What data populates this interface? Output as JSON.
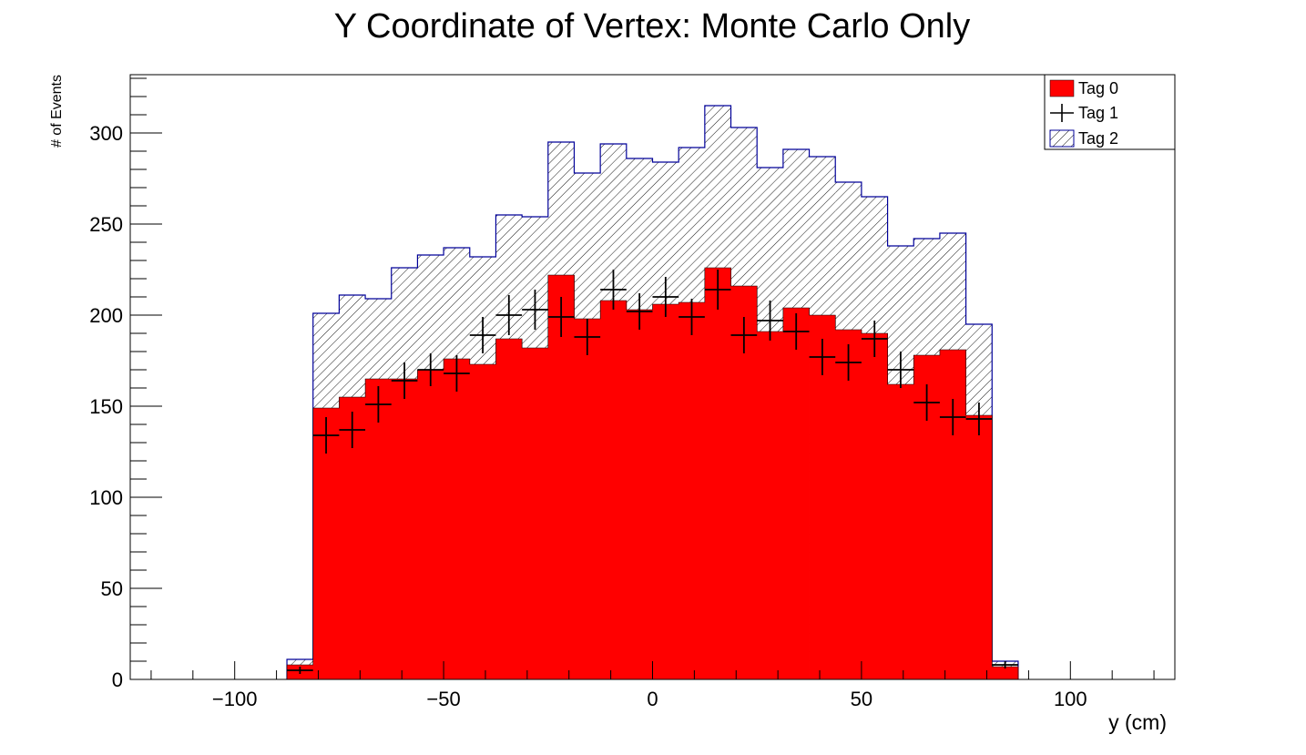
{
  "chart_data": {
    "type": "bar",
    "title": "Y Coordinate of Vertex: Monte Carlo Only",
    "xlabel": "y (cm)",
    "ylabel": "# of Events",
    "xlim": [
      -125,
      125
    ],
    "ylim": [
      0,
      332
    ],
    "x_ticks": [
      -100,
      -50,
      0,
      50,
      100
    ],
    "x_tick_labels": [
      "−100",
      "−50",
      "0",
      "50",
      "100"
    ],
    "y_ticks": [
      0,
      50,
      100,
      150,
      200,
      250,
      300
    ],
    "y_tick_labels": [
      "0",
      "50",
      "100",
      "150",
      "200",
      "250",
      "300"
    ],
    "bin_edges": [
      -87.5,
      -81.25,
      -75,
      -68.75,
      -62.5,
      -56.25,
      -50,
      -43.75,
      -37.5,
      -31.25,
      -25,
      -18.75,
      -12.5,
      -6.25,
      0,
      6.25,
      12.5,
      18.75,
      25,
      31.25,
      37.5,
      43.75,
      50,
      56.25,
      62.5,
      68.75,
      75,
      81.25,
      87.5
    ],
    "legend_position": "top-right",
    "grid": false,
    "colors": {
      "tag0": "#ff0000",
      "tag2_line": "#000099",
      "tag1": "#000000"
    },
    "series": [
      {
        "name": "Tag 0",
        "style": "filled",
        "values": [
          8,
          149,
          155,
          165,
          165,
          170,
          176,
          173,
          187,
          182,
          222,
          198,
          208,
          203,
          206,
          207,
          226,
          216,
          191,
          204,
          200,
          192,
          190,
          162,
          178,
          181,
          145,
          7
        ]
      },
      {
        "name": "Tag 1",
        "style": "points-with-errors",
        "values": [
          5,
          134,
          137,
          151,
          164,
          170,
          168,
          189,
          200,
          203,
          199,
          188,
          214,
          202,
          210,
          199,
          214,
          189,
          197,
          191,
          177,
          174,
          187,
          170,
          152,
          144,
          143,
          8
        ],
        "errors": [
          2,
          10,
          10,
          10,
          10,
          9,
          10,
          10,
          11,
          11,
          11,
          10,
          11,
          10,
          11,
          10,
          11,
          10,
          11,
          10,
          10,
          10,
          10,
          10,
          10,
          10,
          9,
          2
        ]
      },
      {
        "name": "Tag 2",
        "style": "hatched-stacked",
        "values": [
          11,
          201,
          211,
          209,
          226,
          233,
          237,
          232,
          255,
          254,
          295,
          278,
          294,
          286,
          284,
          292,
          315,
          303,
          281,
          291,
          287,
          273,
          265,
          238,
          242,
          245,
          195,
          10
        ]
      }
    ]
  }
}
